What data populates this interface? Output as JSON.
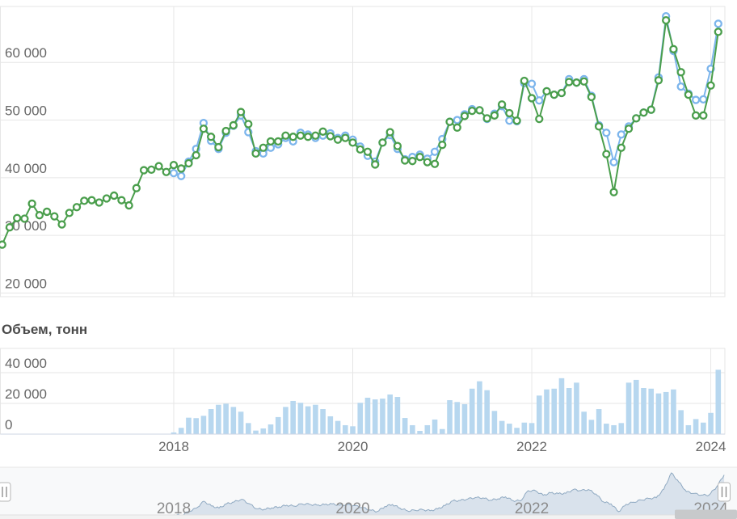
{
  "volume_title": "Объем, тонн",
  "colors": {
    "green_series": "#4a9e4c",
    "blue_series": "#7cb5ec",
    "volume_bar": "#b7d7ef",
    "gridline": "#e6e6e6",
    "axis_text": "#666666",
    "navigator_line": "#90aac2",
    "navigator_fill": "#d9e2ec",
    "navigator_bg": "#f8f9fa",
    "handle_fill": "#ffffff",
    "handle_border": "#b6b6b6",
    "scrollbar_thumb": "#c7c9cb",
    "scrollbar_track": "#f2f2f2"
  },
  "axes": {
    "main_ytick_labels": [
      "60 000",
      "50 000",
      "40 000",
      "30 000",
      "20 000"
    ],
    "main_ytick_values": [
      60000,
      50000,
      40000,
      30000,
      20000
    ],
    "main_ylim": [
      19300,
      69700
    ],
    "volume_ytick_labels": [
      "40 000",
      "20 000",
      "0"
    ],
    "volume_ytick_values": [
      40000,
      20000,
      0
    ],
    "volume_ylim": [
      0,
      55800
    ],
    "xtick_labels": [
      "2018",
      "2020",
      "2022",
      "2024"
    ],
    "xtick_month_index": [
      0,
      24,
      48,
      72
    ],
    "grid": true
  },
  "chart_data": [
    {
      "type": "line",
      "name": "price-green",
      "color": "#4a9e4c",
      "marker": "hollow-circle",
      "start_month": "2016-02",
      "months_offset_from_2018_01": -23,
      "values": [
        28400,
        31400,
        33000,
        32900,
        35500,
        33500,
        34100,
        33300,
        31900,
        33900,
        34900,
        36000,
        36100,
        35700,
        36400,
        36900,
        36100,
        35200,
        38200,
        41300,
        41400,
        42000,
        41000,
        42200,
        41600,
        42500,
        43900,
        48500,
        47100,
        45300,
        48100,
        49100,
        51400,
        49300,
        44200,
        45200,
        46300,
        46300,
        47300,
        47100,
        47300,
        47100,
        47300,
        48000,
        47200,
        46600,
        46900,
        46100,
        44900,
        44500,
        42300,
        46100,
        47900,
        45500,
        43000,
        42900,
        43600,
        42700,
        42400,
        45700,
        49700,
        48700,
        50700,
        51600,
        51700,
        50300,
        50800,
        52700,
        51200,
        49900,
        56800,
        53800,
        50200,
        55000,
        54400,
        54700,
        56600,
        56500,
        56700,
        54000,
        48900,
        44100,
        37500,
        45200,
        48500,
        50300,
        51300,
        51800,
        56900,
        67300,
        62300,
        58300,
        54400,
        50800,
        50800,
        56000,
        65300
      ]
    },
    {
      "type": "line",
      "name": "price-blue",
      "color": "#7cb5ec",
      "marker": "hollow-circle",
      "start_month": "2018-01",
      "months_offset_from_2018_01": 0,
      "values": [
        40800,
        40300,
        42800,
        45000,
        49500,
        46400,
        45000,
        47800,
        49000,
        50800,
        47900,
        44600,
        44200,
        45200,
        45800,
        46900,
        46300,
        47800,
        47500,
        46900,
        47300,
        47700,
        46900,
        47300,
        46600,
        45400,
        43800,
        42800,
        46100,
        47400,
        45000,
        43200,
        43600,
        44000,
        43300,
        44500,
        46700,
        49700,
        50000,
        51000,
        51900,
        51700,
        50200,
        51100,
        52400,
        49900,
        49800,
        56400,
        56300,
        53400,
        55000,
        54400,
        54700,
        57100,
        56500,
        57100,
        54200,
        49100,
        47800,
        42700,
        47500,
        48900,
        50300,
        51300,
        51800,
        57400,
        68000,
        62000,
        55800,
        54600,
        53500,
        53600,
        58900,
        66700
      ]
    },
    {
      "type": "bar",
      "name": "volume",
      "title": "Объем, тонн",
      "color": "#b7d7ef",
      "start_month": "2018-01",
      "months_offset_from_2018_01": 0,
      "ylim": [
        0,
        55800
      ],
      "values": [
        1100,
        4100,
        10700,
        10400,
        11900,
        16300,
        19100,
        19800,
        17700,
        14600,
        7200,
        2300,
        3700,
        6300,
        11100,
        17700,
        21600,
        20400,
        18100,
        19100,
        16300,
        11600,
        8600,
        5800,
        5100,
        20400,
        23700,
        22600,
        23100,
        25800,
        24200,
        10500,
        5800,
        2100,
        5800,
        9500,
        3300,
        22100,
        20900,
        19500,
        29600,
        34400,
        28600,
        15100,
        8600,
        6800,
        4100,
        7500,
        7200,
        25100,
        29100,
        29600,
        36400,
        30000,
        33500,
        14600,
        9300,
        16300,
        6800,
        5800,
        7200,
        33500,
        35300,
        30000,
        29600,
        26500,
        27400,
        29100,
        15600,
        5800,
        9800,
        7500,
        13800,
        41900
      ]
    },
    {
      "type": "area",
      "name": "navigator",
      "source_series": "price-blue",
      "line_color": "#90aac2",
      "fill_color": "#d9e2ec",
      "xtick_labels": [
        "2018",
        "2020",
        "2022",
        "2024"
      ]
    }
  ]
}
